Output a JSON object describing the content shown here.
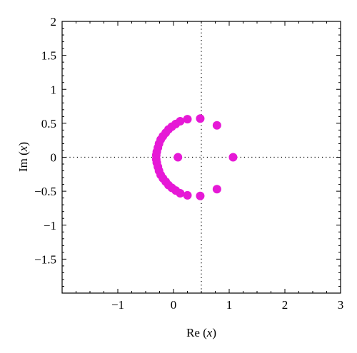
{
  "chart_data": {
    "type": "scatter",
    "title": "",
    "xlabel": "Re",
    "ylabel": "Im",
    "axis_var": "x",
    "xlim": [
      -2,
      3
    ],
    "ylim": [
      -2,
      2
    ],
    "xticks": [
      -1,
      0,
      1,
      2,
      3
    ],
    "xtick_labels": [
      "−1",
      "0",
      "1",
      "2",
      "3"
    ],
    "yticks": [
      2,
      1.5,
      1,
      0.5,
      0,
      -0.5,
      -1,
      -1.5
    ],
    "ytick_labels": [
      "2",
      "1.5",
      "1",
      "0.5",
      "0",
      "−0.5",
      "−1",
      "−1.5"
    ],
    "reference_lines": {
      "x": 0.5,
      "y": 0
    },
    "grid": false,
    "legend": "none",
    "marker_color": "#e619d6",
    "series": [
      {
        "points": [
          [
            0.48,
            0.57
          ],
          [
            0.25,
            0.56
          ],
          [
            0.12,
            0.53
          ],
          [
            0.04,
            0.49
          ],
          [
            -0.03,
            0.45
          ],
          [
            -0.09,
            0.41
          ],
          [
            -0.14,
            0.36
          ],
          [
            -0.19,
            0.31
          ],
          [
            -0.23,
            0.26
          ],
          [
            -0.26,
            0.2
          ],
          [
            -0.28,
            0.14
          ],
          [
            -0.3,
            0.08
          ],
          [
            -0.31,
            0.03
          ],
          [
            -0.31,
            -0.03
          ],
          [
            -0.3,
            -0.08
          ],
          [
            -0.28,
            -0.14
          ],
          [
            -0.26,
            -0.2
          ],
          [
            -0.23,
            -0.26
          ],
          [
            -0.19,
            -0.31
          ],
          [
            -0.14,
            -0.36
          ],
          [
            -0.09,
            -0.41
          ],
          [
            -0.03,
            -0.45
          ],
          [
            0.04,
            -0.49
          ],
          [
            0.12,
            -0.53
          ],
          [
            0.25,
            -0.56
          ],
          [
            0.48,
            -0.57
          ],
          [
            0.78,
            0.47
          ],
          [
            0.78,
            -0.47
          ],
          [
            0.08,
            0.0
          ],
          [
            1.07,
            0.0
          ]
        ]
      }
    ]
  }
}
